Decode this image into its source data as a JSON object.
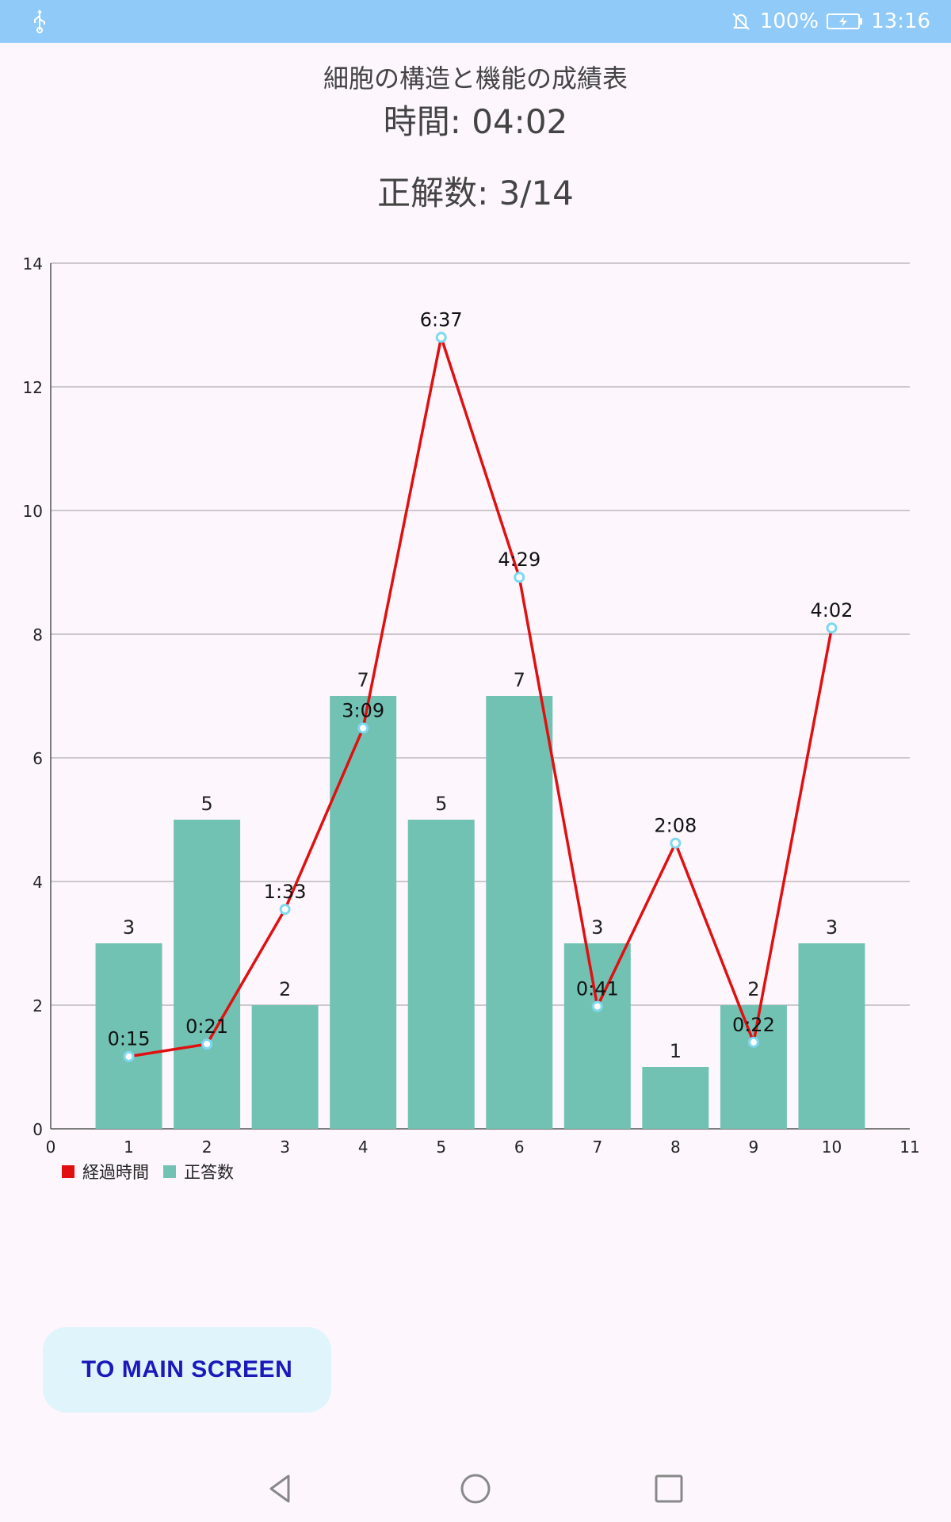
{
  "status_bar": {
    "battery_percent": "100%",
    "time": "13:16",
    "icons": [
      "usb-icon",
      "notifications-off-icon",
      "battery-charging-icon"
    ]
  },
  "header": {
    "title": "細胞の構造と機能の成績表",
    "time_label": "時間: 04:02",
    "score_label": "正解数: 3/14"
  },
  "chart_data": {
    "type": "bar",
    "x": [
      1,
      2,
      3,
      4,
      5,
      6,
      7,
      8,
      9,
      10
    ],
    "xlim": [
      0,
      11
    ],
    "ylim": [
      0,
      14
    ],
    "x_ticks": [
      0,
      1,
      2,
      3,
      4,
      5,
      6,
      7,
      8,
      9,
      10,
      11
    ],
    "y_ticks": [
      0,
      2,
      4,
      6,
      8,
      10,
      12,
      14
    ],
    "grid": "horizontal",
    "legend_placement": "bottom-left",
    "series": [
      {
        "name": "正答数",
        "type": "bar",
        "color": "#72c2b4",
        "values": [
          3,
          5,
          2,
          7,
          5,
          7,
          3,
          1,
          2,
          3
        ],
        "labels": [
          "3",
          "5",
          "2",
          "7",
          "5",
          "7",
          "3",
          "1",
          "2",
          "3"
        ]
      },
      {
        "name": "経過時間",
        "type": "line",
        "color": "#e01010",
        "point_color": "#7fd8f0",
        "values": [
          1.17,
          1.37,
          3.55,
          6.48,
          12.8,
          8.92,
          1.98,
          4.62,
          1.4,
          8.1
        ],
        "labels": [
          "0:15",
          "0:21",
          "1:33",
          "3:09",
          "6:37",
          "4:29",
          "0:41",
          "2:08",
          "0:22",
          "4:02"
        ]
      }
    ]
  },
  "actions": {
    "main_button_label": "TO MAIN SCREEN"
  },
  "nav_bar": {
    "icons": [
      "back-icon",
      "home-icon",
      "recents-icon"
    ]
  }
}
